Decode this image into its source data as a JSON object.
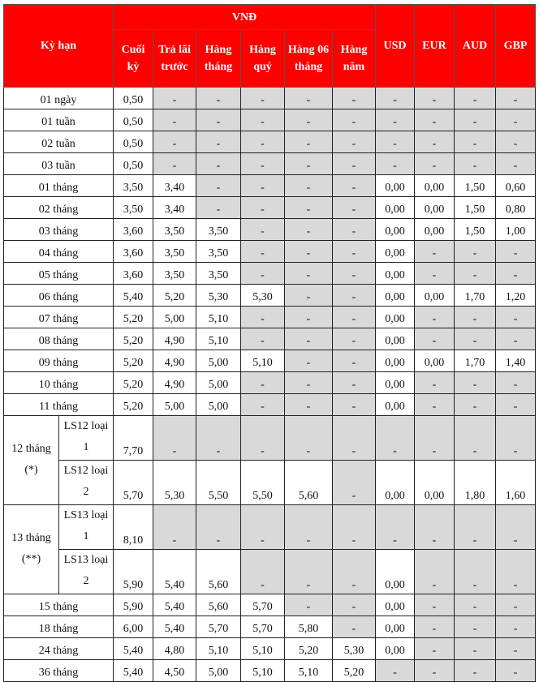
{
  "header": {
    "term": "Kỳ hạn",
    "vnd": "VNĐ",
    "vnd_columns": [
      "Cuối kỳ",
      "Trả lãi trước",
      "Hàng tháng",
      "Hàng quý",
      "Hàng 06 tháng",
      "Hàng năm"
    ],
    "fx_columns": [
      "USD",
      "EUR",
      "AUD",
      "GBP"
    ]
  },
  "colors": {
    "header_bg": "#ff0000",
    "empty_cell_bg": "#d9d9d9"
  },
  "rows": [
    {
      "term": "01 ngày",
      "values": [
        "0,50",
        "-",
        "-",
        "-",
        "-",
        "-",
        "-",
        "-",
        "-",
        "-"
      ]
    },
    {
      "term": "01 tuần",
      "values": [
        "0,50",
        "-",
        "-",
        "-",
        "-",
        "-",
        "-",
        "-",
        "-",
        "-"
      ]
    },
    {
      "term": "02 tuần",
      "values": [
        "0,50",
        "-",
        "-",
        "-",
        "-",
        "-",
        "-",
        "-",
        "-",
        "-"
      ]
    },
    {
      "term": "03 tuần",
      "values": [
        "0,50",
        "-",
        "-",
        "-",
        "-",
        "-",
        "-",
        "-",
        "-",
        "-"
      ]
    },
    {
      "term": "01 tháng",
      "values": [
        "3,50",
        "3,40",
        "-",
        "-",
        "-",
        "-",
        "0,00",
        "0,00",
        "1,50",
        "0,60"
      ]
    },
    {
      "term": "02 tháng",
      "values": [
        "3,50",
        "3,40",
        "-",
        "-",
        "-",
        "-",
        "0,00",
        "0,00",
        "1,50",
        "0,80"
      ]
    },
    {
      "term": "03 tháng",
      "values": [
        "3,60",
        "3,50",
        "3,50",
        "-",
        "-",
        "-",
        "0,00",
        "0,00",
        "1,50",
        "1,00"
      ]
    },
    {
      "term": "04 tháng",
      "values": [
        "3,60",
        "3,50",
        "3,50",
        "-",
        "-",
        "-",
        "0,00",
        "-",
        "-",
        "-"
      ]
    },
    {
      "term": "05 tháng",
      "values": [
        "3,60",
        "3,50",
        "3,50",
        "-",
        "-",
        "-",
        "0,00",
        "-",
        "-",
        "-"
      ]
    },
    {
      "term": "06 tháng",
      "values": [
        "5,40",
        "5,20",
        "5,30",
        "5,30",
        "-",
        "-",
        "0,00",
        "0,00",
        "1,70",
        "1,20"
      ]
    },
    {
      "term": "07 tháng",
      "values": [
        "5,20",
        "5,00",
        "5,10",
        "-",
        "-",
        "-",
        "0,00",
        "-",
        "-",
        "-"
      ]
    },
    {
      "term": "08 tháng",
      "values": [
        "5,20",
        "4,90",
        "5,10",
        "-",
        "-",
        "-",
        "0,00",
        "-",
        "-",
        "-"
      ]
    },
    {
      "term": "09 tháng",
      "values": [
        "5,20",
        "4,90",
        "5,00",
        "5,10",
        "-",
        "-",
        "0,00",
        "0,00",
        "1,70",
        "1,40"
      ]
    },
    {
      "term": "10 tháng",
      "values": [
        "5,20",
        "4,90",
        "5,00",
        "-",
        "-",
        "-",
        "0,00",
        "-",
        "-",
        "-"
      ]
    },
    {
      "term": "11 tháng",
      "values": [
        "5,20",
        "5,00",
        "5,00",
        "-",
        "-",
        "-",
        "0,00",
        "-",
        "-",
        "-"
      ]
    }
  ],
  "groups": [
    {
      "term": "12 tháng (*)",
      "subrows": [
        {
          "name": "LS12 loại 1",
          "values": [
            "7,70",
            "-",
            "-",
            "-",
            "-",
            "-",
            "-",
            "-",
            "-",
            "-"
          ]
        },
        {
          "name": "LS12 loại 2",
          "values": [
            "5,70",
            "5,30",
            "5,50",
            "5,50",
            "5,60",
            "-",
            "0,00",
            "0,00",
            "1,80",
            "1,60"
          ]
        }
      ]
    },
    {
      "term": "13 tháng (**)",
      "subrows": [
        {
          "name": "LS13 loại 1",
          "values": [
            "8,10",
            "-",
            "-",
            "-",
            "-",
            "-",
            "-",
            "-",
            "-",
            "-"
          ]
        },
        {
          "name": "LS13 loại 2",
          "values": [
            "5,90",
            "5,40",
            "5,60",
            "-",
            "-",
            "-",
            "0,00",
            "-",
            "-",
            "-"
          ]
        }
      ]
    }
  ],
  "rows_after": [
    {
      "term": "15 tháng",
      "values": [
        "5,90",
        "5,40",
        "5,60",
        "5,70",
        "-",
        "-",
        "0,00",
        "-",
        "-",
        "-"
      ]
    },
    {
      "term": "18 tháng",
      "values": [
        "6,00",
        "5,40",
        "5,70",
        "5,70",
        "5,80",
        "-",
        "0,00",
        "-",
        "-",
        "-"
      ]
    },
    {
      "term": "24 tháng",
      "values": [
        "5,40",
        "4,80",
        "5,10",
        "5,10",
        "5,20",
        "5,30",
        "0,00",
        "-",
        "-",
        "-"
      ]
    },
    {
      "term": "36 tháng",
      "values": [
        "5,40",
        "4,50",
        "5,00",
        "5,10",
        "5,10",
        "5,20",
        "-",
        "-",
        "-",
        "-"
      ]
    }
  ]
}
